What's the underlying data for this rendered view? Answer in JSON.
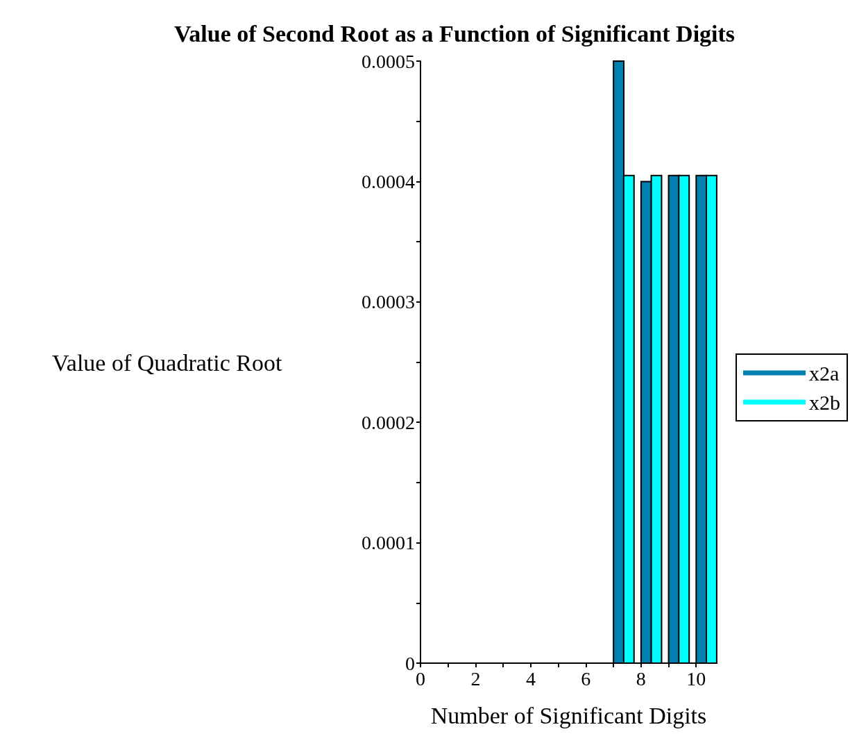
{
  "chart_data": {
    "type": "bar",
    "title": "Value of Second Root as a Function of Significant Digits",
    "xlabel": "Number of Significant Digits",
    "ylabel": "Value of Quadratic Root",
    "series": [
      {
        "name": "x2a",
        "color": "#0080b0",
        "x": [
          7.19,
          8.19,
          9.19,
          10.19
        ],
        "values": [
          0.0005,
          0.0004,
          0.000405,
          0.000405
        ]
      },
      {
        "name": "x2b",
        "color": "#00ffff",
        "x": [
          7.56,
          8.56,
          9.56,
          10.56
        ],
        "values": [
          0.000405,
          0.000405,
          0.000405,
          0.000405
        ]
      }
    ],
    "xlim": [
      0,
      10.75
    ],
    "xticks": [
      0,
      {
        "value": 1,
        "label": null
      },
      2,
      {
        "value": 3,
        "label": null
      },
      4,
      {
        "value": 5,
        "label": null
      },
      6,
      {
        "value": 7,
        "label": null
      },
      8,
      {
        "value": 9,
        "label": null
      },
      10
    ],
    "ylim": [
      0,
      0.0005
    ],
    "yticks": [
      0,
      {
        "value": 5e-05,
        "label": null
      },
      0.0001,
      {
        "value": 0.00015,
        "label": null
      },
      0.0002,
      {
        "value": 0.00025,
        "label": null
      },
      0.0003,
      {
        "value": 0.00035,
        "label": null
      },
      0.0004,
      {
        "value": 0.00045,
        "label": null
      },
      0.0005
    ],
    "legend": "right",
    "grid": false
  }
}
